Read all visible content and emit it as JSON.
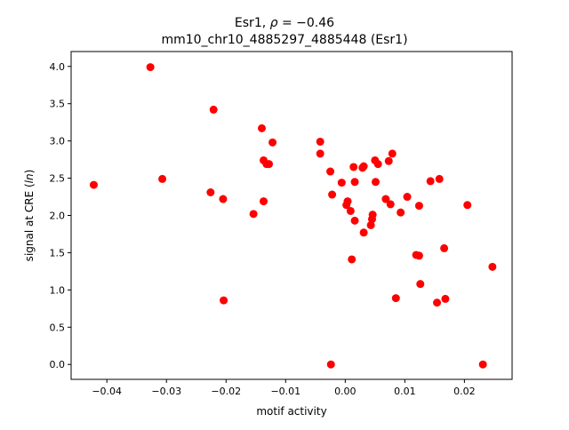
{
  "chart_data": {
    "type": "scatter",
    "title_line1": "Esr1, ρ = −0.46",
    "title_line2": "mm10_chr10_4885297_4885448 (Esr1)",
    "xlabel": "motif activity",
    "ylabel": "signal at CRE (ln)",
    "xlim": [
      -0.046,
      0.028
    ],
    "ylim": [
      -0.2,
      4.2
    ],
    "xticks": [
      -0.04,
      -0.03,
      -0.02,
      -0.01,
      0.0,
      0.01,
      0.02
    ],
    "xtick_labels": [
      "−0.04",
      "−0.03",
      "−0.02",
      "−0.01",
      "0.00",
      "0.01",
      "0.02"
    ],
    "yticks": [
      0.0,
      0.5,
      1.0,
      1.5,
      2.0,
      2.5,
      3.0,
      3.5,
      4.0
    ],
    "ytick_labels": [
      "0.0",
      "0.5",
      "1.0",
      "1.5",
      "2.0",
      "2.5",
      "3.0",
      "3.5",
      "4.0"
    ],
    "grid": false,
    "marker_color": "#ff0000",
    "points": [
      {
        "x": -0.0422,
        "y": 2.41
      },
      {
        "x": -0.0327,
        "y": 3.99
      },
      {
        "x": -0.0307,
        "y": 2.49
      },
      {
        "x": -0.0221,
        "y": 3.42
      },
      {
        "x": -0.0226,
        "y": 2.31
      },
      {
        "x": -0.0205,
        "y": 2.22
      },
      {
        "x": -0.0204,
        "y": 0.86
      },
      {
        "x": -0.0154,
        "y": 2.02
      },
      {
        "x": -0.014,
        "y": 3.17
      },
      {
        "x": -0.0137,
        "y": 2.74
      },
      {
        "x": -0.0132,
        "y": 2.69
      },
      {
        "x": -0.0128,
        "y": 2.69
      },
      {
        "x": -0.0122,
        "y": 2.98
      },
      {
        "x": -0.0137,
        "y": 2.19
      },
      {
        "x": -0.0042,
        "y": 2.99
      },
      {
        "x": -0.0042,
        "y": 2.83
      },
      {
        "x": -0.0025,
        "y": 2.59
      },
      {
        "x": -0.0022,
        "y": 2.28
      },
      {
        "x": -0.0024,
        "y": 0.0
      },
      {
        "x": -0.0006,
        "y": 2.44
      },
      {
        "x": 0.0002,
        "y": 2.14
      },
      {
        "x": 0.0004,
        "y": 2.19
      },
      {
        "x": 0.0009,
        "y": 2.06
      },
      {
        "x": 0.0011,
        "y": 1.41
      },
      {
        "x": 0.0014,
        "y": 2.65
      },
      {
        "x": 0.0016,
        "y": 2.45
      },
      {
        "x": 0.0016,
        "y": 1.93
      },
      {
        "x": 0.0029,
        "y": 2.64
      },
      {
        "x": 0.0031,
        "y": 2.66
      },
      {
        "x": 0.0031,
        "y": 1.77
      },
      {
        "x": 0.0043,
        "y": 1.87
      },
      {
        "x": 0.0045,
        "y": 1.95
      },
      {
        "x": 0.0046,
        "y": 2.01
      },
      {
        "x": 0.005,
        "y": 2.74
      },
      {
        "x": 0.0051,
        "y": 2.45
      },
      {
        "x": 0.0055,
        "y": 2.69
      },
      {
        "x": 0.0068,
        "y": 2.22
      },
      {
        "x": 0.0073,
        "y": 2.73
      },
      {
        "x": 0.0076,
        "y": 2.15
      },
      {
        "x": 0.0079,
        "y": 2.83
      },
      {
        "x": 0.0085,
        "y": 0.89
      },
      {
        "x": 0.0093,
        "y": 2.04
      },
      {
        "x": 0.0104,
        "y": 2.25
      },
      {
        "x": 0.0119,
        "y": 1.47
      },
      {
        "x": 0.0124,
        "y": 1.46
      },
      {
        "x": 0.0124,
        "y": 2.13
      },
      {
        "x": 0.0126,
        "y": 1.08
      },
      {
        "x": 0.0143,
        "y": 2.46
      },
      {
        "x": 0.0154,
        "y": 0.83
      },
      {
        "x": 0.0158,
        "y": 2.49
      },
      {
        "x": 0.0166,
        "y": 1.56
      },
      {
        "x": 0.0168,
        "y": 0.88
      },
      {
        "x": 0.0205,
        "y": 2.14
      },
      {
        "x": 0.0231,
        "y": 0.0
      },
      {
        "x": 0.0247,
        "y": 1.31
      }
    ]
  }
}
